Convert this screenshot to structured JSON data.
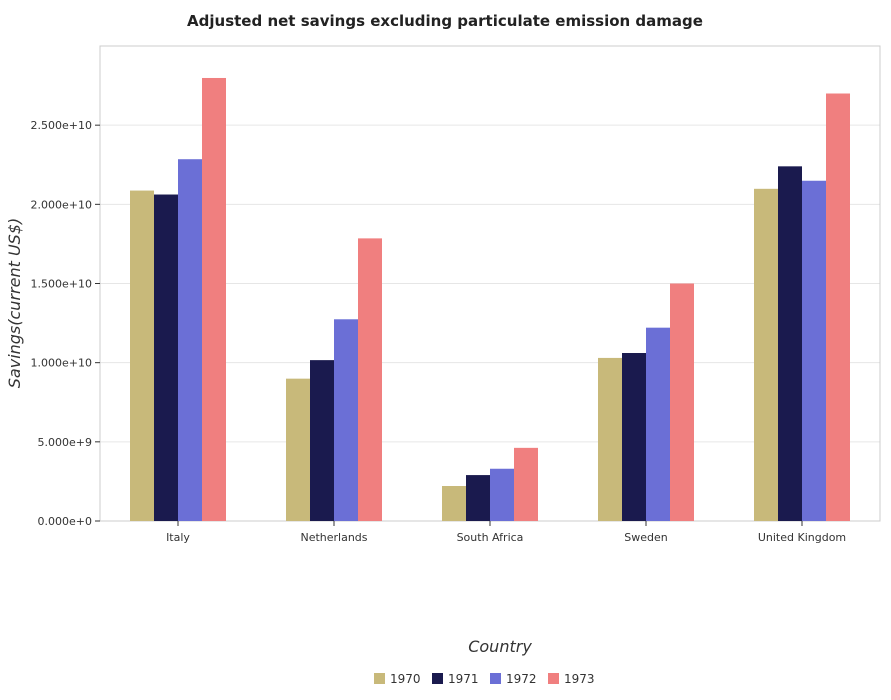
{
  "chart_data": {
    "type": "bar",
    "title": "Adjusted net savings excluding particulate emission damage",
    "xlabel": "Country",
    "ylabel": "Savings(current US$)",
    "categories": [
      "Italy",
      "Netherlands",
      "South Africa",
      "Sweden",
      "United Kingdom"
    ],
    "series": [
      {
        "name": "1970",
        "color": "#c8b97a",
        "values": [
          20870000000.0,
          8990000000.0,
          2210000000.0,
          10300000000.0,
          20980000000.0
        ]
      },
      {
        "name": "1971",
        "color": "#1a1a4e",
        "values": [
          20620000000.0,
          10160000000.0,
          2900000000.0,
          10610000000.0,
          22400000000.0
        ]
      },
      {
        "name": "1972",
        "color": "#6b6fd6",
        "values": [
          22850000000.0,
          12740000000.0,
          3300000000.0,
          12210000000.0,
          21490000000.0
        ]
      },
      {
        "name": "1973",
        "color": "#f07f7f",
        "values": [
          27980000000.0,
          17850000000.0,
          4620000000.0,
          15000000000.0,
          27000000000.0
        ]
      }
    ],
    "ylim": [
      0,
      30000000000.0
    ],
    "yticks": [
      0,
      5000000000.0,
      10000000000.0,
      15000000000.0,
      20000000000.0,
      25000000000.0
    ],
    "ytick_labels": [
      "0.000e+0",
      "5.000e+9",
      "1.000e+10",
      "1.500e+10",
      "2.000e+10",
      "2.500e+10"
    ],
    "grid": true,
    "legend_position": "bottom-center"
  }
}
